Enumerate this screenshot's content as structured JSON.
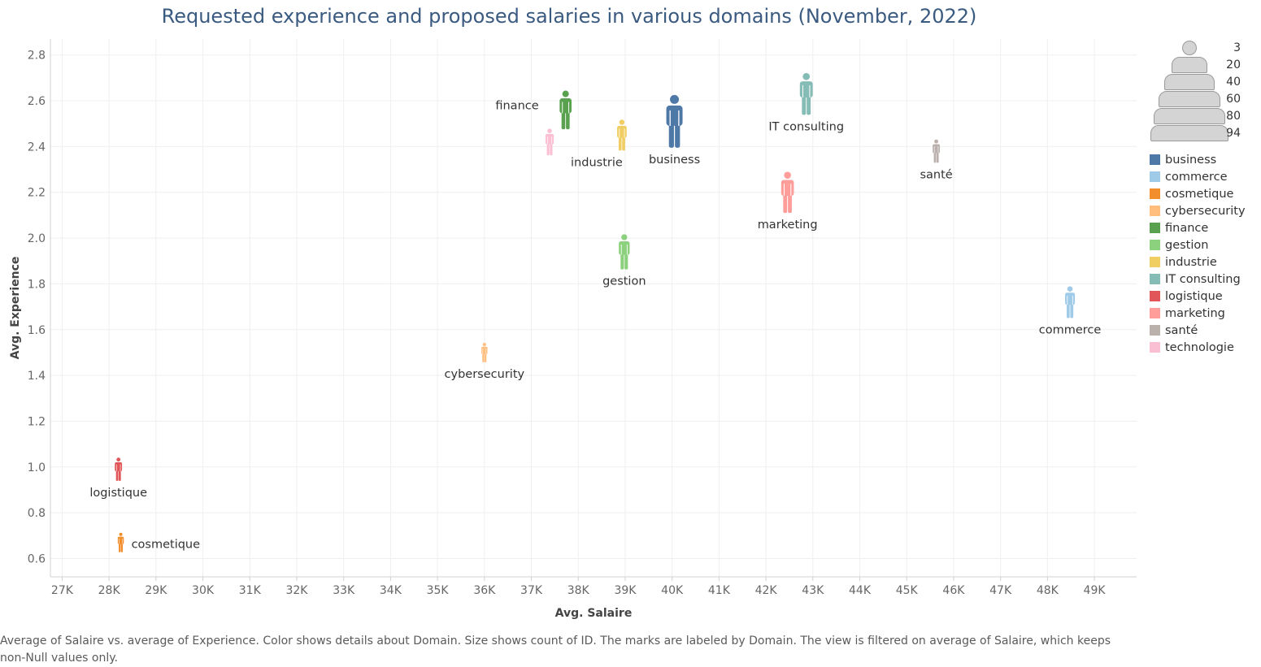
{
  "chart_data": {
    "type": "scatter",
    "title": "Requested experience and proposed salaries in various domains (November, 2022)",
    "xlabel": "Avg. Salaire",
    "ylabel": "Avg. Experience",
    "xlim": [
      26750,
      49900
    ],
    "ylim": [
      0.52,
      2.87
    ],
    "xticks": [
      27000,
      28000,
      29000,
      30000,
      31000,
      32000,
      33000,
      34000,
      35000,
      36000,
      37000,
      38000,
      39000,
      40000,
      41000,
      42000,
      43000,
      44000,
      45000,
      46000,
      47000,
      48000,
      49000
    ],
    "xtick_labels": [
      "27K",
      "28K",
      "29K",
      "30K",
      "31K",
      "32K",
      "33K",
      "34K",
      "35K",
      "36K",
      "37K",
      "38K",
      "39K",
      "40K",
      "41K",
      "42K",
      "43K",
      "44K",
      "45K",
      "46K",
      "47K",
      "48K",
      "49K"
    ],
    "yticks": [
      0.6,
      0.8,
      1.0,
      1.2,
      1.4,
      1.6,
      1.8,
      2.0,
      2.2,
      2.4,
      2.6,
      2.8
    ],
    "ytick_labels": [
      "0.6",
      "0.8",
      "1.0",
      "1.2",
      "1.4",
      "1.6",
      "1.8",
      "2.0",
      "2.2",
      "2.4",
      "2.6",
      "2.8"
    ],
    "grid": true,
    "size_field": "count of ID",
    "size_legend": [
      3,
      20,
      40,
      60,
      80,
      94
    ],
    "points": [
      {
        "domain": "business",
        "x": 40050,
        "y": 2.51,
        "count": 94,
        "color": "#4e79a7",
        "label_pos": "below"
      },
      {
        "domain": "commerce",
        "x": 48480,
        "y": 1.72,
        "count": 22,
        "color": "#a0cbe8",
        "label_pos": "below"
      },
      {
        "domain": "cosmetique",
        "x": 28250,
        "y": 0.67,
        "count": 3,
        "color": "#f28e2b",
        "label_pos": "right"
      },
      {
        "domain": "cybersecurity",
        "x": 36000,
        "y": 1.5,
        "count": 3,
        "color": "#ffbe7d",
        "label_pos": "below"
      },
      {
        "domain": "finance",
        "x": 37730,
        "y": 2.56,
        "count": 40,
        "color": "#59a14f",
        "label_pos": "left"
      },
      {
        "domain": "gestion",
        "x": 38980,
        "y": 1.94,
        "count": 30,
        "color": "#8cd17d",
        "label_pos": "below"
      },
      {
        "domain": "industrie",
        "x": 38930,
        "y": 2.45,
        "count": 20,
        "color": "#f1ce63",
        "label_pos": "below-left"
      },
      {
        "domain": "IT consulting",
        "x": 42860,
        "y": 2.63,
        "count": 50,
        "color": "#86bcb6",
        "label_pos": "below"
      },
      {
        "domain": "logistique",
        "x": 28200,
        "y": 0.99,
        "count": 7,
        "color": "#e15759",
        "label_pos": "below"
      },
      {
        "domain": "marketing",
        "x": 42460,
        "y": 2.2,
        "count": 48,
        "color": "#ff9d9a",
        "label_pos": "below"
      },
      {
        "domain": "santé",
        "x": 45630,
        "y": 2.38,
        "count": 7,
        "color": "#bab0ac",
        "label_pos": "below"
      },
      {
        "domain": "technologie",
        "x": 37390,
        "y": 2.42,
        "count": 12,
        "color": "#fabfd2",
        "label_pos": "none"
      }
    ]
  },
  "legend": {
    "domains": [
      {
        "name": "business",
        "color": "#4e79a7"
      },
      {
        "name": "commerce",
        "color": "#a0cbe8"
      },
      {
        "name": "cosmetique",
        "color": "#f28e2b"
      },
      {
        "name": "cybersecurity",
        "color": "#ffbe7d"
      },
      {
        "name": "finance",
        "color": "#59a14f"
      },
      {
        "name": "gestion",
        "color": "#8cd17d"
      },
      {
        "name": "industrie",
        "color": "#f1ce63"
      },
      {
        "name": "IT consulting",
        "color": "#86bcb6"
      },
      {
        "name": "logistique",
        "color": "#e15759"
      },
      {
        "name": "marketing",
        "color": "#ff9d9a"
      },
      {
        "name": "santé",
        "color": "#bab0ac"
      },
      {
        "name": "technologie",
        "color": "#fabfd2"
      }
    ]
  },
  "footnote": "Average of Salaire vs. average of Experience.  Color shows details about Domain.  Size shows count of ID.  The marks are labeled by Domain. The view is filtered on average of Salaire, which keeps non-Null values only."
}
